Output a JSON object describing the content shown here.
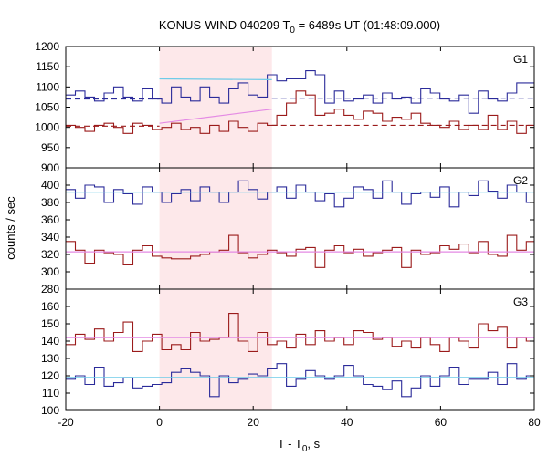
{
  "chart_data": {
    "type": "line",
    "title": "KONUS-WIND 040209 T",
    "title_sub": "0",
    "title_rest": " = 6489s UT (01:48:09.000)",
    "xlabel": "T - T",
    "xlabel_sub": "0",
    "xlabel_rest": ", s",
    "ylabel": "counts / sec",
    "xlim": [
      -20,
      80
    ],
    "x_ticks": [
      -20,
      0,
      20,
      40,
      60,
      80
    ],
    "highlight_interval": [
      0,
      24
    ],
    "colors": {
      "blue": "#2b2b9a",
      "red": "#9b1b1b",
      "cyan": "#6ecbe8",
      "pink": "#e48ae4",
      "shade": "#fde8ea"
    },
    "panels": [
      {
        "label": "G1",
        "ylim": [
          900,
          1200
        ],
        "y_ticks": [
          900,
          950,
          1000,
          1050,
          1100,
          1150,
          1200
        ],
        "steps_x0": -20,
        "steps_dx": 2.048,
        "series": [
          {
            "name": "blue",
            "values": [
              1080,
              1090,
              1075,
              1065,
              1085,
              1100,
              1075,
              1065,
              1095,
              1070,
              1060,
              1100,
              1075,
              1065,
              1100,
              1075,
              1060,
              1095,
              1110,
              1080,
              1075,
              1130,
              1115,
              1120,
              1120,
              1140,
              1130,
              1060,
              1090,
              1065,
              1070,
              1080,
              1060,
              1085,
              1070,
              1075,
              1060,
              1095,
              1085,
              1070,
              1065,
              1080,
              1035,
              1090,
              1070,
              1065,
              1085,
              1110,
              1110,
              1070,
              1050,
              1085
            ]
          },
          {
            "name": "red",
            "values": [
              1005,
              1000,
              990,
              1005,
              1010,
              1000,
              985,
              1010,
              1005,
              995,
              1000,
              1010,
              995,
              1000,
              985,
              1005,
              990,
              1015,
              1000,
              990,
              1010,
              1005,
              1030,
              1060,
              1090,
              1080,
              1030,
              1035,
              1045,
              1030,
              1020,
              1040,
              1035,
              1015,
              1025,
              1020,
              1035,
              1010,
              1005,
              1000,
              1015,
              995,
              1005,
              995,
              1030,
              995,
              1015,
              985,
              1005,
              990,
              1005,
              1000
            ]
          },
          {
            "name": "blue-bg-pre",
            "x": [
              -20,
              0
            ],
            "values": [
              1070,
              1070
            ]
          },
          {
            "name": "blue-fit",
            "x": [
              0,
              24
            ],
            "values": [
              1120,
              1118
            ]
          },
          {
            "name": "blue-bg-post",
            "x": [
              24,
              80
            ],
            "values": [
              1072,
              1072
            ]
          },
          {
            "name": "red-bg-pre",
            "x": [
              -20,
              0
            ],
            "values": [
              1003,
              1003
            ]
          },
          {
            "name": "red-fit",
            "x": [
              0,
              24
            ],
            "values": [
              1010,
              1045
            ]
          },
          {
            "name": "red-bg-post",
            "x": [
              24,
              80
            ],
            "values": [
              1005,
              1005
            ]
          }
        ]
      },
      {
        "label": "G2",
        "ylim": [
          280,
          420
        ],
        "y_ticks": [
          280,
          300,
          320,
          340,
          360,
          380,
          400
        ],
        "steps_x0": -20,
        "steps_dx": 2.048,
        "series": [
          {
            "name": "blue",
            "values": [
              395,
              385,
              400,
              398,
              380,
              395,
              390,
              378,
              398,
              392,
              380,
              390,
              395,
              382,
              398,
              392,
              380,
              392,
              405,
              395,
              384,
              392,
              398,
              385,
              400,
              392,
              382,
              390,
              375,
              385,
              398,
              395,
              385,
              405,
              392,
              378,
              390,
              392,
              386,
              398,
              375,
              392,
              388,
              405,
              393,
              385,
              400,
              392,
              380,
              375,
              390,
              395
            ]
          },
          {
            "name": "red",
            "values": [
              335,
              325,
              310,
              325,
              322,
              320,
              308,
              325,
              330,
              318,
              316,
              315,
              315,
              318,
              320,
              323,
              325,
              342,
              322,
              316,
              320,
              325,
              322,
              318,
              326,
              328,
              305,
              325,
              330,
              322,
              326,
              318,
              322,
              325,
              328,
              305,
              325,
              320,
              322,
              330,
              326,
              332,
              322,
              335,
              320,
              318,
              342,
              325,
              335,
              322,
              345,
              325
            ]
          },
          {
            "name": "blue-fit",
            "x": [
              -20,
              80
            ],
            "values": [
              392,
              392
            ]
          },
          {
            "name": "red-fit",
            "x": [
              -20,
              80
            ],
            "values": [
              323,
              323
            ]
          }
        ]
      },
      {
        "label": "G3",
        "ylim": [
          100,
          170
        ],
        "y_ticks": [
          100,
          110,
          120,
          130,
          140,
          150,
          160
        ],
        "steps_x0": -20,
        "steps_dx": 2.048,
        "series": [
          {
            "name": "blue",
            "values": [
              118,
              120,
              115,
              125,
              114,
              116,
              119,
              113,
              114,
              115,
              116,
              122,
              124,
              122,
              120,
              108,
              120,
              116,
              118,
              121,
              120,
              124,
              127,
              114,
              118,
              123,
              120,
              118,
              120,
              126,
              120,
              115,
              114,
              112,
              117,
              108,
              113,
              120,
              114,
              120,
              125,
              115,
              118,
              118,
              122,
              115,
              127,
              118,
              120,
              114,
              124,
              118
            ]
          },
          {
            "name": "red",
            "values": [
              138,
              144,
              141,
              147,
              140,
              145,
              151,
              134,
              140,
              144,
              135,
              138,
              135,
              145,
              140,
              141,
              142,
              156,
              140,
              134,
              145,
              138,
              140,
              136,
              144,
              138,
              146,
              140,
              142,
              138,
              146,
              145,
              141,
              142,
              137,
              140,
              136,
              142,
              138,
              134,
              142,
              140,
              136,
              150,
              146,
              148,
              136,
              142,
              140,
              152,
              135,
              162
            ]
          },
          {
            "name": "blue-fit",
            "x": [
              -20,
              80
            ],
            "values": [
              119,
              119
            ]
          },
          {
            "name": "red-fit",
            "x": [
              -20,
              80
            ],
            "values": [
              142,
              142
            ]
          }
        ]
      }
    ]
  }
}
